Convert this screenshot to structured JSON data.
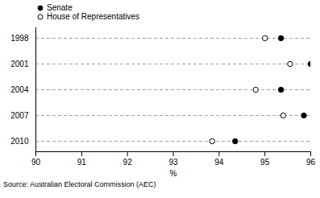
{
  "chart_data": {
    "type": "dot",
    "categories": [
      "1998",
      "2001",
      "2004",
      "2007",
      "2010"
    ],
    "series": [
      {
        "name": "Senate",
        "color": "#000000",
        "marker": "filled_circle",
        "values": [
          95.35,
          96.0,
          95.35,
          95.85,
          94.35
        ]
      },
      {
        "name": "House of Representatives",
        "color": "#000000",
        "marker": "open_circle",
        "values": [
          95.0,
          95.55,
          94.8,
          95.4,
          93.85
        ]
      }
    ],
    "orientation": "horizontal",
    "x_label": "%",
    "xlim": [
      90,
      96
    ],
    "xticks": [
      90,
      91,
      92,
      93,
      94,
      95,
      96
    ],
    "grid": true,
    "legend": "top-left",
    "caption": "Source: Australian Electoral Commission (AEC)"
  }
}
